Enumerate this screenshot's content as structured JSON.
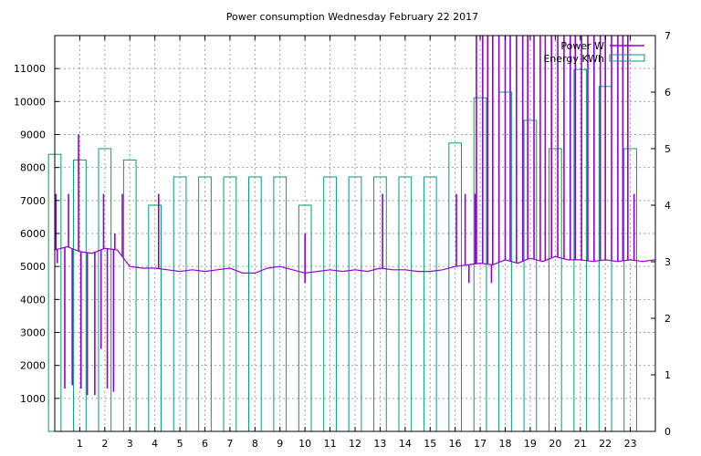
{
  "chart_data": {
    "type": "bar",
    "title": "Power consumption Wednesday February 22 2017",
    "xlabel": "",
    "ylabel": "",
    "y2label": "",
    "grid": true,
    "legend_placement": "top-right",
    "x_ticks": [
      "1",
      "2",
      "3",
      "4",
      "5",
      "6",
      "7",
      "8",
      "9",
      "10",
      "11",
      "12",
      "13",
      "14",
      "15",
      "16",
      "17",
      "18",
      "19",
      "20",
      "21",
      "22",
      "23"
    ],
    "y_ticks": [
      "1000",
      "2000",
      "3000",
      "4000",
      "5000",
      "6000",
      "7000",
      "8000",
      "9000",
      "10000",
      "11000"
    ],
    "y2_ticks": [
      "0",
      "1",
      "2",
      "3",
      "4",
      "5",
      "6",
      "7"
    ],
    "xlim": [
      0,
      24
    ],
    "ylim": [
      0,
      12000
    ],
    "y2lim": [
      0,
      7
    ],
    "series": [
      {
        "name": "Energy KWh",
        "type": "bar",
        "axis": "y2",
        "color": "#009e73",
        "x": [
          0,
          1,
          2,
          3,
          4,
          5,
          6,
          7,
          8,
          9,
          10,
          11,
          12,
          13,
          14,
          15,
          16,
          17,
          18,
          19,
          20,
          21,
          22,
          23
        ],
        "values": [
          4.9,
          4.8,
          5.0,
          4.8,
          4.0,
          4.5,
          4.5,
          4.5,
          4.5,
          4.5,
          4.0,
          4.5,
          4.5,
          4.5,
          4.5,
          4.5,
          5.1,
          5.9,
          6.0,
          5.5,
          5.0,
          6.4,
          6.1,
          5.0
        ]
      },
      {
        "name": "Power W",
        "type": "line",
        "axis": "y",
        "color": "#9400d3",
        "baseline": [
          [
            0.0,
            5500
          ],
          [
            0.5,
            5600
          ],
          [
            1.0,
            5450
          ],
          [
            1.5,
            5400
          ],
          [
            2.0,
            5550
          ],
          [
            2.5,
            5500
          ],
          [
            3.0,
            5000
          ],
          [
            3.5,
            4950
          ],
          [
            4.0,
            4950
          ],
          [
            4.5,
            4900
          ],
          [
            5.0,
            4850
          ],
          [
            5.5,
            4900
          ],
          [
            6.0,
            4850
          ],
          [
            6.5,
            4900
          ],
          [
            7.0,
            4950
          ],
          [
            7.5,
            4800
          ],
          [
            8.0,
            4800
          ],
          [
            8.5,
            4950
          ],
          [
            9.0,
            5000
          ],
          [
            9.5,
            4900
          ],
          [
            10.0,
            4800
          ],
          [
            10.5,
            4850
          ],
          [
            11.0,
            4900
          ],
          [
            11.5,
            4850
          ],
          [
            12.0,
            4900
          ],
          [
            12.5,
            4850
          ],
          [
            13.0,
            4950
          ],
          [
            13.5,
            4900
          ],
          [
            14.0,
            4900
          ],
          [
            14.5,
            4850
          ],
          [
            15.0,
            4850
          ],
          [
            15.5,
            4900
          ],
          [
            16.0,
            5000
          ],
          [
            16.5,
            5050
          ],
          [
            17.0,
            5100
          ],
          [
            17.5,
            5050
          ],
          [
            18.0,
            5200
          ],
          [
            18.5,
            5100
          ],
          [
            19.0,
            5250
          ],
          [
            19.5,
            5150
          ],
          [
            20.0,
            5300
          ],
          [
            20.5,
            5200
          ],
          [
            21.0,
            5200
          ],
          [
            21.5,
            5150
          ],
          [
            22.0,
            5200
          ],
          [
            22.5,
            5150
          ],
          [
            23.0,
            5200
          ],
          [
            23.5,
            5150
          ],
          [
            24.0,
            5200
          ]
        ],
        "spikes": [
          [
            0.05,
            7200
          ],
          [
            0.1,
            5100
          ],
          [
            0.4,
            1300
          ],
          [
            0.55,
            7200
          ],
          [
            0.7,
            1400
          ],
          [
            0.95,
            9000
          ],
          [
            1.05,
            1300
          ],
          [
            1.3,
            1100
          ],
          [
            1.6,
            1100
          ],
          [
            1.85,
            2500
          ],
          [
            1.95,
            7200
          ],
          [
            2.1,
            1300
          ],
          [
            2.35,
            1200
          ],
          [
            2.4,
            6000
          ],
          [
            2.7,
            7200
          ],
          [
            4.15,
            7200
          ],
          [
            10.0,
            6000
          ],
          [
            10.0,
            4500
          ],
          [
            13.1,
            7200
          ],
          [
            16.05,
            7200
          ],
          [
            16.4,
            7200
          ],
          [
            16.55,
            4500
          ],
          [
            16.8,
            7200
          ],
          [
            16.85,
            12000
          ],
          [
            17.1,
            12000
          ],
          [
            17.3,
            12000
          ],
          [
            17.45,
            4500
          ],
          [
            17.5,
            12000
          ],
          [
            17.75,
            12000
          ],
          [
            18.0,
            12000
          ],
          [
            18.2,
            12000
          ],
          [
            18.45,
            12000
          ],
          [
            18.7,
            12000
          ],
          [
            18.9,
            12000
          ],
          [
            19.15,
            12000
          ],
          [
            19.4,
            12000
          ],
          [
            19.6,
            12000
          ],
          [
            19.85,
            12000
          ],
          [
            20.1,
            12000
          ],
          [
            20.35,
            12000
          ],
          [
            20.6,
            12000
          ],
          [
            20.8,
            12000
          ],
          [
            21.05,
            12000
          ],
          [
            21.3,
            12000
          ],
          [
            21.55,
            12000
          ],
          [
            21.8,
            12000
          ],
          [
            22.0,
            12000
          ],
          [
            22.25,
            12000
          ],
          [
            22.5,
            12000
          ],
          [
            22.7,
            12000
          ],
          [
            22.9,
            12000
          ],
          [
            23.15,
            7200
          ]
        ]
      }
    ]
  }
}
